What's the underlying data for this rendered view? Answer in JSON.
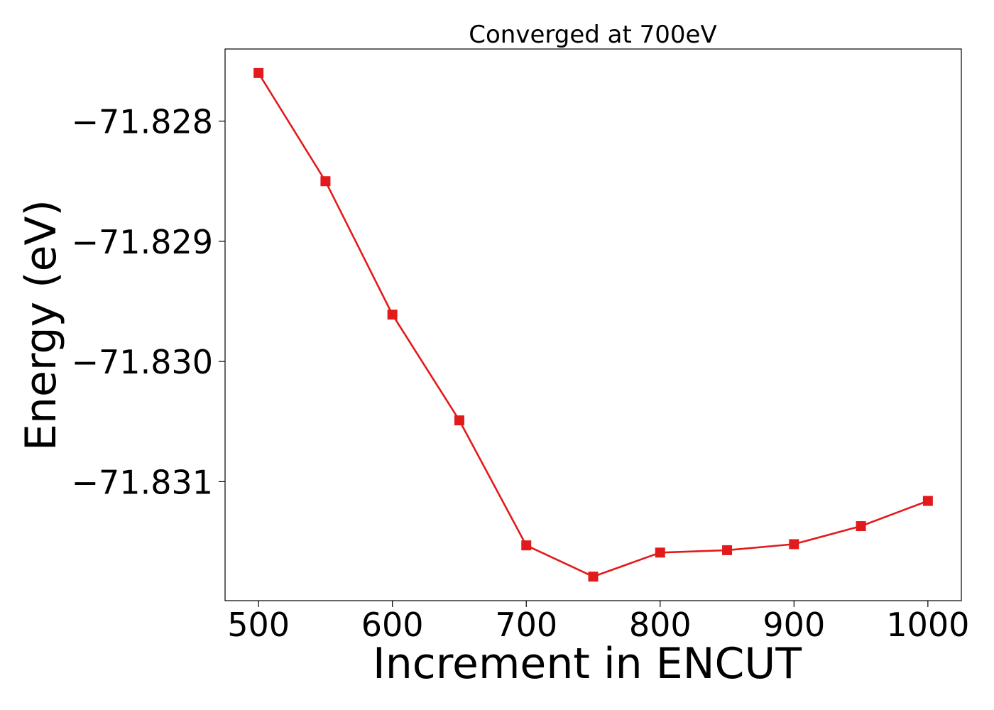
{
  "chart_data": {
    "type": "line",
    "title": "Converged at 700eV",
    "xlabel": "Increment in ENCUT",
    "ylabel": "Energy (eV)",
    "xlim": [
      475,
      1025
    ],
    "ylim": [
      -71.83199,
      -71.8274
    ],
    "x_ticks": [
      500,
      600,
      700,
      800,
      900,
      1000
    ],
    "x_tick_labels": [
      "500",
      "600",
      "700",
      "800",
      "900",
      "1000"
    ],
    "y_ticks": [
      -71.828,
      -71.829,
      -71.83,
      -71.831
    ],
    "y_tick_labels": [
      "−71.828",
      "−71.829",
      "−71.830",
      "−71.831"
    ],
    "grid": false,
    "series": [
      {
        "color": "#e31a1c",
        "marker": "square",
        "x": [
          500,
          550,
          600,
          650,
          700,
          750,
          800,
          850,
          900,
          950,
          1000
        ],
        "y": [
          -71.8276,
          -71.8285,
          -71.82961,
          -71.83049,
          -71.83153,
          -71.83179,
          -71.83159,
          -71.83157,
          -71.83152,
          -71.83137,
          -71.83116
        ]
      }
    ]
  }
}
